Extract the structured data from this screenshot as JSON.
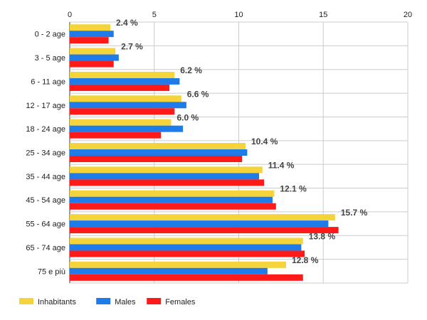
{
  "chart_data": {
    "type": "bar",
    "orientation": "horizontal",
    "categories": [
      "0 - 2 age",
      "3 - 5 age",
      "6 - 11 age",
      "12 - 17 age",
      "18 - 24 age",
      "25 - 34 age",
      "35 - 44 age",
      "45 - 54 age",
      "55 - 64 age",
      "65 - 74 age",
      "75 e più"
    ],
    "series": [
      {
        "name": "Inhabitants",
        "color": "#f5d33b",
        "values": [
          2.4,
          2.7,
          6.2,
          6.6,
          6.0,
          10.4,
          11.4,
          12.1,
          15.7,
          13.8,
          12.8
        ]
      },
      {
        "name": "Males",
        "color": "#1f7be8",
        "values": [
          2.6,
          2.9,
          6.5,
          6.9,
          6.7,
          10.5,
          11.2,
          12.0,
          15.3,
          13.7,
          11.7
        ]
      },
      {
        "name": "Females",
        "color": "#ff1a1a",
        "values": [
          2.3,
          2.6,
          5.9,
          6.2,
          5.4,
          10.2,
          11.5,
          12.2,
          15.9,
          13.9,
          13.8
        ]
      }
    ],
    "data_labels": [
      "2.4 %",
      "2.7 %",
      "6.2 %",
      "6.6 %",
      "6.0 %",
      "10.4 %",
      "11.4 %",
      "12.1 %",
      "15.7 %",
      "13.8 %",
      "12.8 %"
    ],
    "xticks": [
      "0",
      "5",
      "10",
      "15",
      "20"
    ],
    "xlim": [
      0,
      20
    ],
    "grid": true,
    "xaxis_position": "top",
    "legend_position": "bottom-left"
  }
}
